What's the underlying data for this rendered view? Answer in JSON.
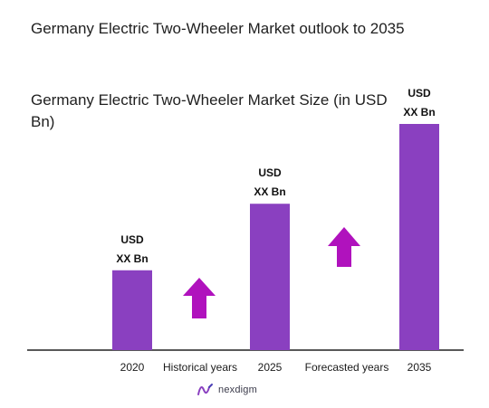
{
  "header": {
    "title": "Germany Electric Two-Wheeler Market outlook to 2035",
    "subtitle": "Germany Electric Two-Wheeler Market Size (in USD Bn)"
  },
  "chart_data": {
    "type": "bar",
    "categories": [
      "2020",
      "2025",
      "2035"
    ],
    "values": [
      3,
      5.5,
      8.5
    ],
    "value_labels": [
      [
        "USD",
        "XX Bn"
      ],
      [
        "USD",
        "XX Bn"
      ],
      [
        "USD",
        "XX Bn"
      ]
    ],
    "ylim": [
      0,
      8.5
    ],
    "grid": false,
    "legend": "none",
    "period_labels": [
      "Historical years",
      "Forecasted years"
    ],
    "colors": {
      "bar": "#8a40c0",
      "arrow": "#b012bd",
      "axis": "#222222"
    }
  },
  "footer": {
    "logo_text": "nexdigm",
    "logo_icon": "nexdigm-logo-icon"
  }
}
